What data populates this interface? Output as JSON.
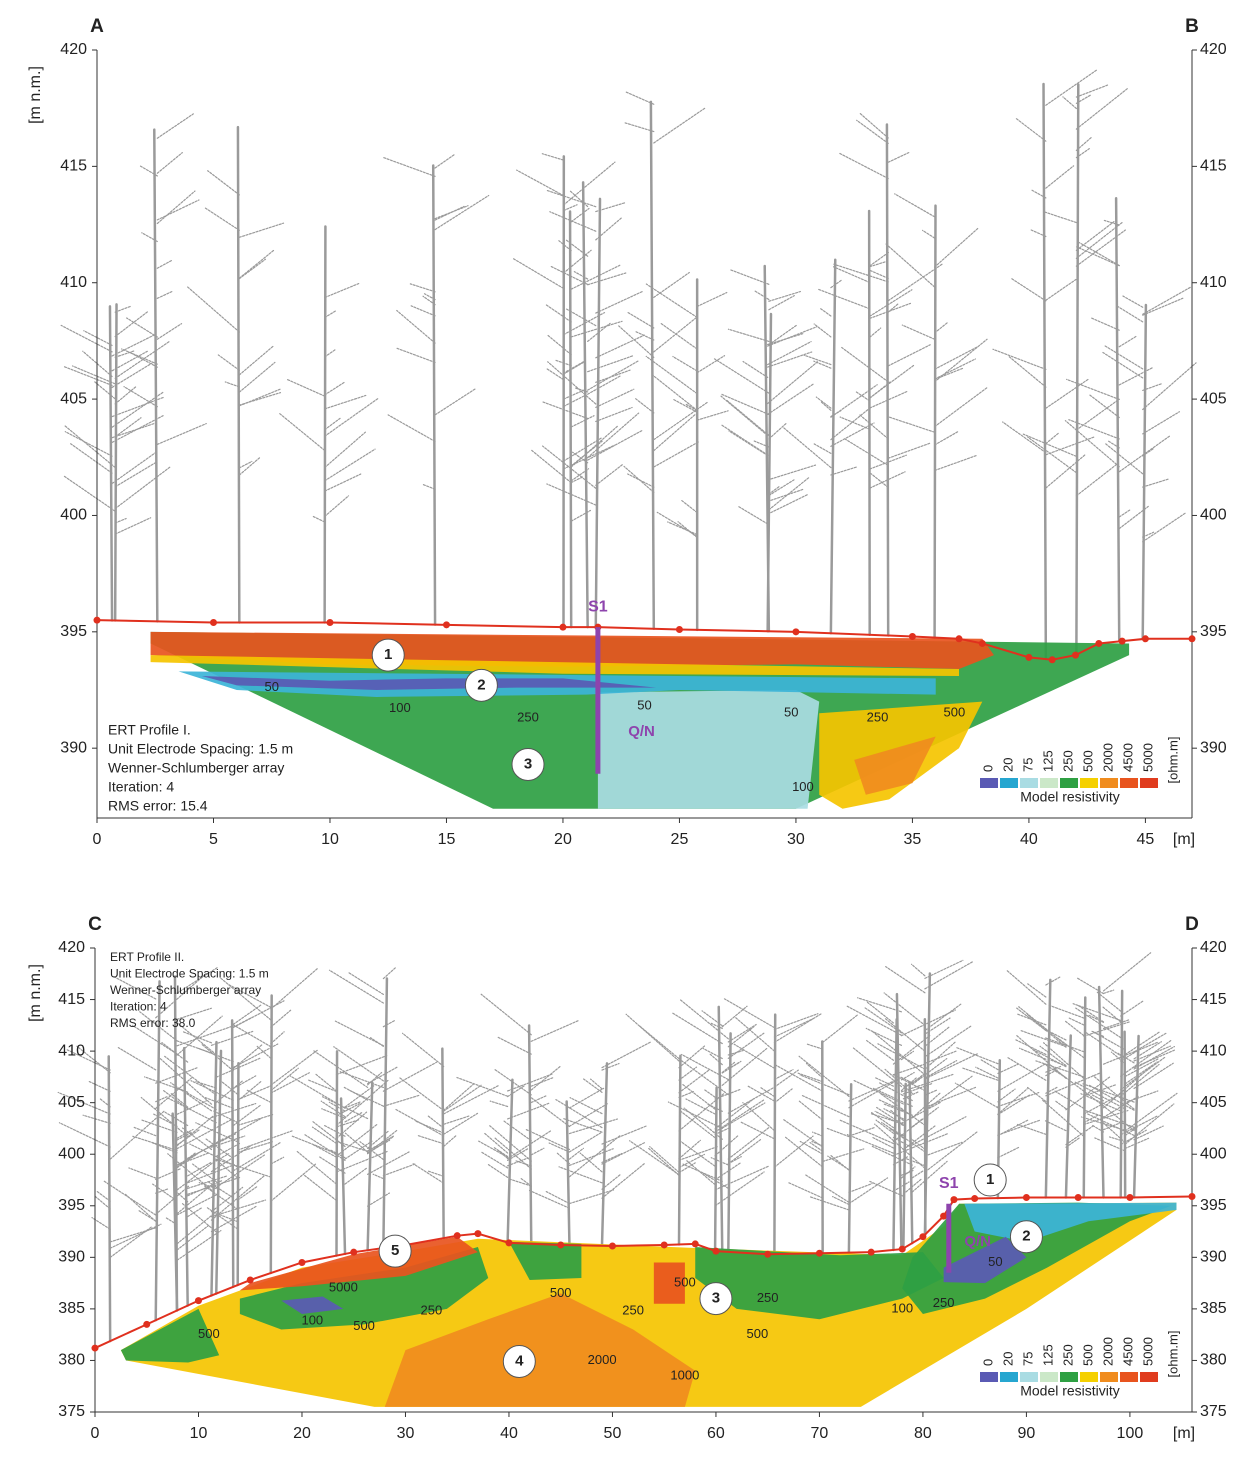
{
  "chart_data": [
    {
      "type": "ert-section",
      "corner_labels": [
        "A",
        "B"
      ],
      "ylabel": "[m n.m.]",
      "xlabel": "[m]",
      "xlim": [
        0,
        47
      ],
      "ylim": [
        387,
        420
      ],
      "xticks": [
        0,
        5,
        10,
        15,
        20,
        25,
        30,
        35,
        40,
        45
      ],
      "yticks": [
        390,
        395,
        400,
        405,
        410,
        415,
        420
      ],
      "info": [
        "ERT Profile I.",
        "Unit Electrode Spacing: 1.5 m",
        "Wenner-Schlumberger array",
        "Iteration: 4",
        "RMS error: 15.4"
      ],
      "x": [
        0,
        5,
        10,
        15,
        20,
        21.5,
        25,
        30,
        35,
        37,
        38,
        40,
        41,
        42,
        43,
        44,
        45,
        47
      ],
      "series": [
        {
          "color": "#e0301e",
          "values": [
            395.5,
            395.4,
            395.4,
            395.3,
            395.2,
            395.2,
            395.1,
            395.0,
            394.8,
            394.7,
            394.5,
            393.9,
            393.8,
            394.0,
            394.5,
            394.6,
            394.7,
            394.7
          ]
        }
      ],
      "zones": [
        {
          "color": "#2ea043",
          "x": [
            2.3,
            44.3,
            44.3,
            30,
            17,
            2.3
          ],
          "y": [
            395,
            394.5,
            394,
            387.4,
            387.4,
            394.5
          ]
        },
        {
          "color": "#e8541e",
          "x": [
            2.3,
            38,
            38.5,
            37,
            30,
            20,
            10,
            2.3
          ],
          "y": [
            395,
            394.7,
            394,
            393.4,
            393.6,
            393.5,
            393.6,
            394
          ]
        },
        {
          "color": "#f5c400",
          "x": [
            2.3,
            37,
            37,
            20,
            2.3
          ],
          "y": [
            394,
            393.4,
            393.1,
            393.2,
            393.7
          ]
        },
        {
          "color": "#a9dce3",
          "x": [
            21.5,
            30,
            31,
            30.5,
            29,
            21.5
          ],
          "y": [
            392.4,
            392.5,
            392,
            387.4,
            387.4,
            387.4
          ]
        },
        {
          "color": "#3cb4d8",
          "x": [
            3.5,
            36,
            36,
            25,
            21,
            12,
            6
          ],
          "y": [
            393.3,
            393,
            392.3,
            392.5,
            392.3,
            392.2,
            392.5
          ]
        },
        {
          "color": "#5a5ab4",
          "x": [
            4.5,
            10,
            15,
            20,
            24,
            18,
            12,
            6
          ],
          "y": [
            393.1,
            392.9,
            393,
            393,
            392.6,
            392.6,
            392.5,
            392.7
          ]
        },
        {
          "color": "#f5c400",
          "x": [
            31,
            38,
            37,
            34,
            32,
            31
          ],
          "y": [
            391.5,
            392,
            390,
            387.8,
            387.4,
            388
          ]
        },
        {
          "color": "#f08c1e",
          "x": [
            32.5,
            36,
            35,
            33
          ],
          "y": [
            389.5,
            390.5,
            388.5,
            388
          ]
        }
      ],
      "contour_labels": {
        "values": [
          50,
          100,
          250,
          50,
          50,
          250,
          500,
          100
        ],
        "x": [
          7.5,
          13,
          18.5,
          23.5,
          29.8,
          33.5,
          36.8,
          30.3
        ],
        "y": [
          392.6,
          391.7,
          391.3,
          391.8,
          391.5,
          391.3,
          391.5,
          388.3
        ]
      },
      "markers": {
        "labels": [
          1,
          2,
          3
        ],
        "x": [
          12.5,
          16.5,
          18.5
        ],
        "y": [
          394,
          392.7,
          389.3
        ]
      },
      "borehole": {
        "label": "S1",
        "note": "Q/N",
        "color": "#8e44ad",
        "x": 21.5,
        "top": 395.2,
        "bottom": 388.9,
        "note_x": 22.8,
        "note_y": 390.7
      },
      "legend": {
        "title": "Model resistivity",
        "unit": "[ohm.m]",
        "position": "lower right",
        "labels": [
          0,
          20,
          75,
          125,
          250,
          500,
          2000,
          4500,
          5000
        ],
        "colors": [
          "#5a5ab4",
          "#26a6d0",
          "#a9dce3",
          "#cbe8c8",
          "#2ea043",
          "#f5d000",
          "#f08c1e",
          "#e8541e",
          "#e03c1e"
        ]
      }
    },
    {
      "type": "ert-section",
      "corner_labels": [
        "C",
        "D"
      ],
      "ylabel": "[m n.m.]",
      "xlabel": "[m]",
      "xlim": [
        0,
        106
      ],
      "ylim": [
        375,
        420
      ],
      "xticks": [
        0,
        10,
        20,
        30,
        40,
        50,
        60,
        70,
        80,
        90,
        100
      ],
      "yticks": [
        375,
        380,
        385,
        390,
        395,
        400,
        405,
        410,
        415,
        420
      ],
      "info": [
        "ERT Profile II.",
        "Unit Electrode Spacing: 1.5 m",
        "Wenner-Schlumberger array",
        "Iteration: 4",
        "RMS error: 38.0"
      ],
      "x": [
        0,
        5,
        10,
        15,
        20,
        25,
        30,
        35,
        37,
        40,
        45,
        50,
        55,
        58,
        60,
        65,
        70,
        75,
        78,
        80,
        82,
        83,
        85,
        90,
        95,
        100,
        106
      ],
      "series": [
        {
          "color": "#e0301e",
          "values": [
            381.2,
            383.5,
            385.8,
            387.8,
            389.5,
            390.5,
            391.2,
            392.1,
            392.3,
            391.4,
            391.2,
            391.1,
            391.2,
            391.3,
            390.6,
            390.3,
            390.4,
            390.5,
            390.8,
            392,
            394,
            395.6,
            395.7,
            395.8,
            395.8,
            395.8,
            395.9
          ]
        }
      ],
      "zones": [
        {
          "color": "#f5c400",
          "x": [
            2.5,
            10,
            20,
            30,
            37,
            58,
            78,
            82,
            83.5,
            104.5,
            104.5,
            90,
            74,
            27,
            3
          ],
          "y": [
            381,
            385.3,
            389,
            390.6,
            391.8,
            390.9,
            390.2,
            393,
            395.2,
            395.3,
            394.6,
            385,
            375.5,
            375.5,
            380
          ]
        },
        {
          "color": "#f08c1e",
          "x": [
            28,
            40,
            47,
            57,
            58,
            52,
            45,
            38,
            30
          ],
          "y": [
            375.5,
            375.5,
            375.5,
            375.5,
            379,
            383,
            386.5,
            384,
            381
          ]
        },
        {
          "color": "#2ea043",
          "x": [
            2.5,
            10,
            12,
            9,
            3
          ],
          "y": [
            381,
            385,
            380.5,
            379.8,
            380
          ]
        },
        {
          "color": "#2ea043",
          "x": [
            14,
            20,
            30,
            37,
            38,
            34,
            26,
            18,
            14
          ],
          "y": [
            386,
            387.5,
            389,
            391,
            388,
            385,
            383.5,
            383,
            384.5
          ]
        },
        {
          "color": "#e8541e",
          "x": [
            15,
            25,
            35,
            37,
            30,
            20,
            14
          ],
          "y": [
            387.5,
            390.3,
            392,
            390.5,
            388.2,
            387.2,
            386.8
          ]
        },
        {
          "color": "#5a5ab4",
          "x": [
            18,
            22,
            24,
            20
          ],
          "y": [
            385.8,
            386.2,
            385,
            384.5
          ]
        },
        {
          "color": "#2ea043",
          "x": [
            40,
            47,
            47,
            42
          ],
          "y": [
            391.5,
            391.3,
            388,
            387.8
          ]
        },
        {
          "color": "#e8541e",
          "x": [
            54,
            57,
            57,
            54
          ],
          "y": [
            389.5,
            389.5,
            385.5,
            385.5
          ]
        },
        {
          "color": "#2ea043",
          "x": [
            58,
            72,
            80,
            82,
            78,
            70,
            62,
            58
          ],
          "y": [
            391,
            390.2,
            390.5,
            388,
            386,
            384,
            385,
            388
          ]
        },
        {
          "color": "#2ea043",
          "x": [
            79,
            83.5,
            95,
            104,
            100,
            92,
            86,
            80,
            78
          ],
          "y": [
            390,
            395.2,
            395.3,
            395,
            393.5,
            389,
            386,
            384.5,
            387
          ]
        },
        {
          "color": "#3cb4d8",
          "x": [
            84,
            104.5,
            104.5,
            96,
            90,
            85
          ],
          "y": [
            395.2,
            395.3,
            394.6,
            393.5,
            391.5,
            392.5
          ]
        },
        {
          "color": "#5a5ab4",
          "x": [
            82,
            88,
            90,
            86,
            82
          ],
          "y": [
            389,
            392,
            390,
            387.5,
            387.6
          ]
        }
      ],
      "contour_labels": {
        "values": [
          5000,
          100,
          250,
          500,
          500,
          500,
          250,
          500,
          250,
          500,
          2000,
          1000,
          100,
          250,
          50
        ],
        "x": [
          24,
          21,
          32.5,
          26,
          11,
          45,
          52,
          57,
          65,
          64,
          49,
          57,
          78,
          82,
          87
        ],
        "y": [
          387,
          383.8,
          384.8,
          383.3,
          382.5,
          386.5,
          384.8,
          387.5,
          386,
          382.5,
          380,
          378.5,
          385,
          385.5,
          389.5
        ]
      },
      "markers": {
        "labels": [
          1,
          2,
          3,
          4,
          5
        ],
        "x": [
          86.5,
          90,
          60,
          41,
          29
        ],
        "y": [
          397.5,
          392,
          386,
          379.9,
          390.6
        ]
      },
      "borehole": {
        "label": "S1",
        "note": "Q/N",
        "color": "#8e44ad",
        "x": 82.5,
        "top": 395.2,
        "bottom": 388.5,
        "note_x": 84,
        "note_y": 391.5
      },
      "legend": {
        "title": "Model resistivity",
        "unit": "[ohm.m]",
        "position": "lower right",
        "labels": [
          0,
          20,
          75,
          125,
          250,
          500,
          2000,
          4500,
          5000
        ],
        "colors": [
          "#5a5ab4",
          "#26a6d0",
          "#a9dce3",
          "#cbe8c8",
          "#2ea043",
          "#f5d000",
          "#f08c1e",
          "#e8541e",
          "#e03c1e"
        ]
      }
    }
  ]
}
